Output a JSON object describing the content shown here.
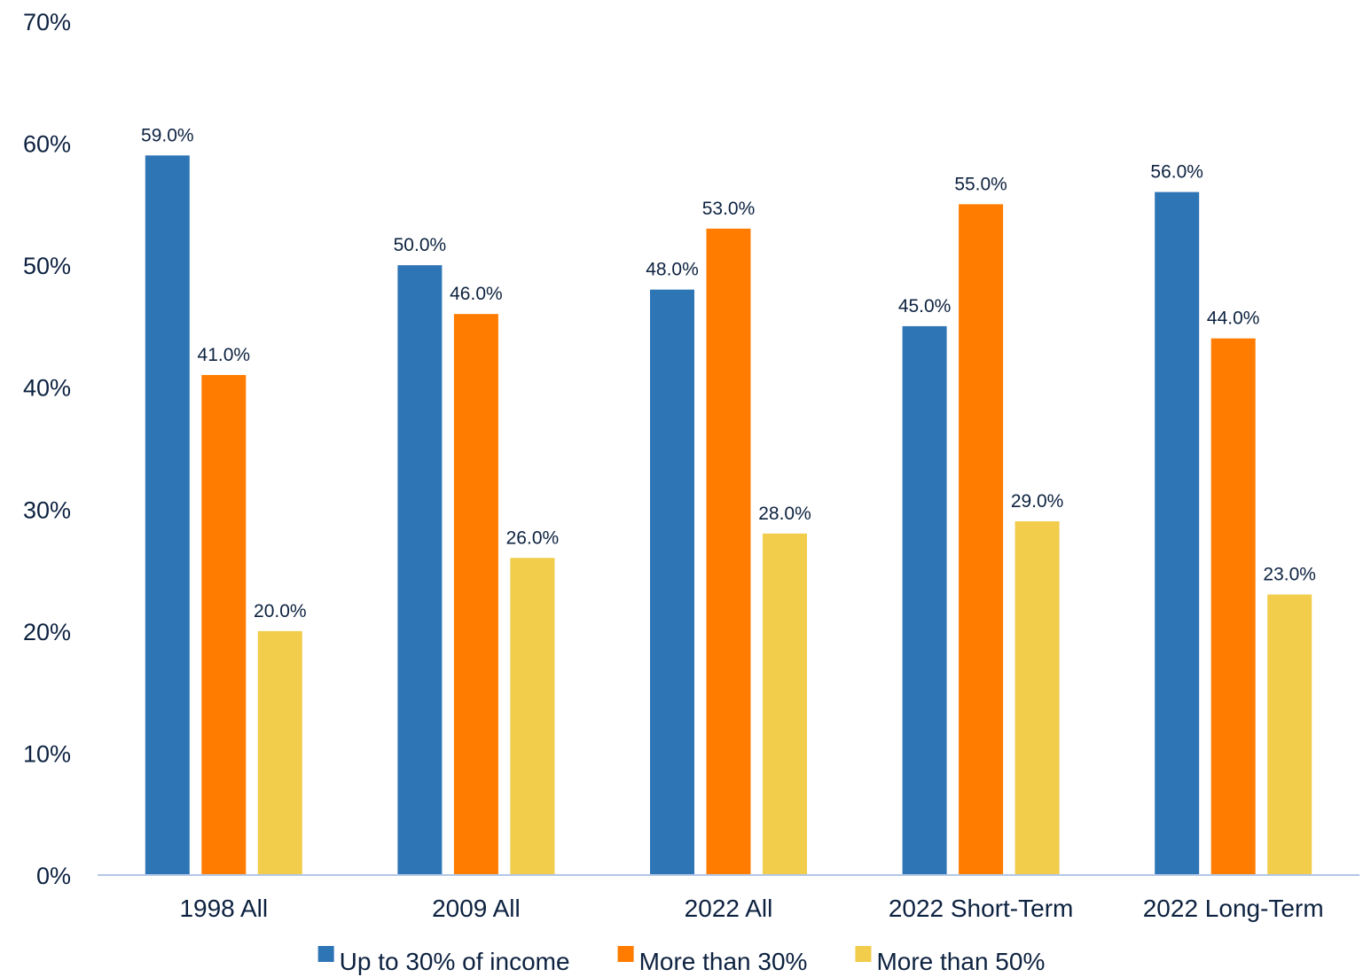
{
  "chart_data": {
    "type": "bar",
    "title": "",
    "xlabel": "",
    "ylabel": "",
    "categories": [
      "1998 All",
      "2009 All",
      "2022 All",
      "2022 Short-Term",
      "2022 Long-Term"
    ],
    "series": [
      {
        "name": "Up to 30% of income",
        "color": "#2e75b6",
        "values": [
          59.0,
          50.0,
          48.0,
          45.0,
          56.0
        ]
      },
      {
        "name": "More than 30%",
        "color": "#ff7c00",
        "values": [
          41.0,
          46.0,
          53.0,
          55.0,
          44.0
        ]
      },
      {
        "name": "More than 50%",
        "color": "#f2cc4b",
        "values": [
          20.0,
          26.0,
          28.0,
          29.0,
          23.0
        ]
      }
    ],
    "ylim": [
      0,
      70
    ],
    "yticks": [
      0,
      10,
      20,
      30,
      40,
      50,
      60,
      70
    ],
    "ytick_labels": [
      "0%",
      "10%",
      "20%",
      "30%",
      "40%",
      "50%",
      "60%",
      "70%"
    ],
    "data_label_format": "0.0%",
    "grid": false,
    "legend": "bottom-center",
    "axis_color": "#b4c7e7",
    "text_color": "#0d2240"
  }
}
